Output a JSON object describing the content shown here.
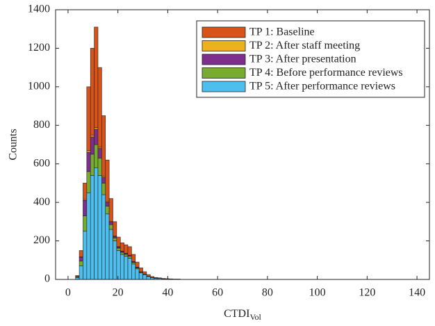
{
  "chart_data": {
    "type": "stacked-histogram",
    "x_label": "CTDI",
    "x_label_subscript": "Vol",
    "y_label": "Counts",
    "bins": [
      3,
      4.5,
      6,
      7.5,
      9,
      10.5,
      12,
      13.5,
      15,
      16.5,
      18,
      19.5,
      21,
      22.5,
      24,
      25.5,
      27,
      28.5,
      30,
      31.5,
      33,
      34.5,
      36,
      37.5,
      39,
      40.5,
      42,
      43.5,
      45
    ],
    "series": [
      {
        "name": "TP 1: Baseline",
        "color": "#d95319",
        "values": [
          5,
          33,
          85,
          332,
          452,
          522,
          414,
          315,
          216,
          120,
          75,
          50,
          43,
          44,
          44,
          37,
          26,
          20,
          12,
          8,
          5,
          3,
          3,
          2,
          2,
          1,
          1,
          1
        ]
      },
      {
        "name": "TP 2: After staff meeting",
        "color": "#edb120",
        "values": [
          0,
          2,
          5,
          8,
          8,
          8,
          6,
          5,
          4,
          3,
          2,
          2,
          2,
          1,
          1,
          1,
          1,
          0,
          0,
          0,
          0,
          0,
          0,
          0,
          0,
          0,
          0,
          0
        ]
      },
      {
        "name": "TP 3: After presentation",
        "color": "#7e2f8e",
        "values": [
          2,
          20,
          80,
          100,
          90,
          80,
          50,
          30,
          20,
          12,
          8,
          6,
          5,
          5,
          5,
          4,
          3,
          2,
          1,
          1,
          0,
          0,
          0,
          0,
          0,
          0,
          0,
          0
        ]
      },
      {
        "name": "TP 4: Before performance reviews",
        "color": "#77ac30",
        "values": [
          3,
          25,
          80,
          110,
          110,
          120,
          90,
          60,
          40,
          25,
          15,
          12,
          10,
          10,
          10,
          8,
          5,
          3,
          2,
          1,
          1,
          1,
          0,
          0,
          0,
          0,
          0,
          0
        ]
      },
      {
        "name": "TP 5: After performance reviews",
        "color": "#4dbeee",
        "values": [
          10,
          70,
          250,
          450,
          540,
          580,
          540,
          440,
          340,
          260,
          200,
          150,
          130,
          120,
          110,
          80,
          55,
          35,
          25,
          15,
          9,
          6,
          5,
          3,
          2,
          2,
          1,
          1
        ]
      }
    ],
    "xlim": [
      -5,
      145
    ],
    "xticks": [
      0,
      20,
      40,
      60,
      80,
      100,
      120,
      140
    ],
    "ylim": [
      0,
      1400
    ],
    "yticks": [
      0,
      200,
      400,
      600,
      800,
      1000,
      1200,
      1400
    ],
    "legend_position": "upper-right"
  }
}
